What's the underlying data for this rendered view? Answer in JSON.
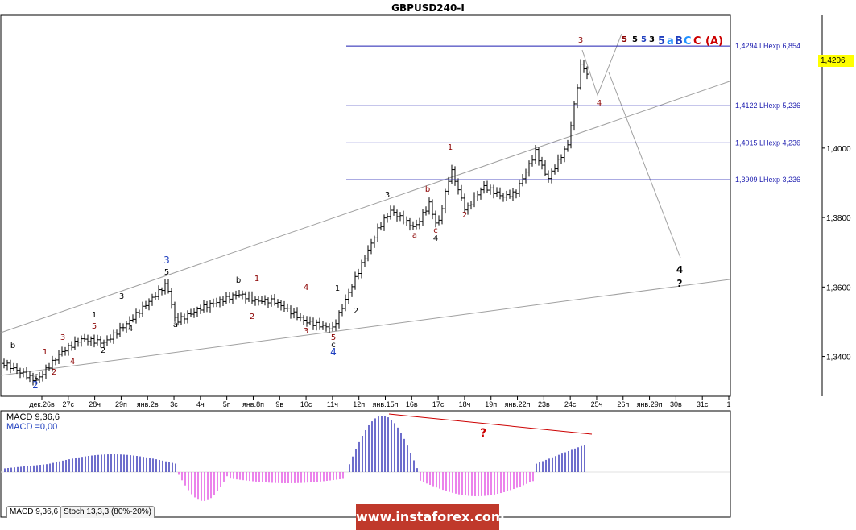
{
  "chart_data": {
    "type": "candlestick",
    "title": "GBPUSD240-I",
    "current_price": "1,4206",
    "y_ticks": [
      "1,4000",
      "1,3800",
      "1,3600",
      "1,3400"
    ],
    "ylim": [
      1.329,
      1.438
    ],
    "x_ticks": [
      "дек.26в",
      "27с",
      "28ч",
      "29п",
      "янв.2в",
      "3с",
      "4ч",
      "5п",
      "янв.8п",
      "9в",
      "10с",
      "11ч",
      "12п",
      "янв.15п",
      "16в",
      "17с",
      "18ч",
      "19п",
      "янв.22п",
      "23в",
      "24с",
      "25ч",
      "26п",
      "янв.29п",
      "30в",
      "31с",
      "1"
    ],
    "fib_levels": [
      {
        "price": 1.4294,
        "label": "1,4294 LHexp 6,854"
      },
      {
        "price": 1.4122,
        "label": "1,4122 LHexp 5,236"
      },
      {
        "price": 1.4015,
        "label": "1,4015 LHexp 4,236"
      },
      {
        "price": 1.3909,
        "label": "1,3909 LHexp 3,236"
      }
    ],
    "wave_labels": [
      {
        "text": "b",
        "color": "#000000"
      },
      {
        "text": "c",
        "color": "#000000"
      },
      {
        "text": "2",
        "color": "#1f3fbf"
      },
      {
        "text": "1",
        "color": "#8b0000"
      },
      {
        "text": "2",
        "color": "#8b0000"
      },
      {
        "text": "3",
        "color": "#8b0000"
      },
      {
        "text": "4",
        "color": "#8b0000"
      },
      {
        "text": "1",
        "color": "#000000"
      },
      {
        "text": "2",
        "color": "#000000"
      },
      {
        "text": "5",
        "color": "#8b0000"
      },
      {
        "text": "3",
        "color": "#000000"
      },
      {
        "text": "4",
        "color": "#000000"
      },
      {
        "text": "3",
        "color": "#1f3fbf"
      },
      {
        "text": "5",
        "color": "#000000"
      },
      {
        "text": "a",
        "color": "#000000"
      },
      {
        "text": "b",
        "color": "#000000"
      },
      {
        "text": "1",
        "color": "#8b0000"
      },
      {
        "text": "2",
        "color": "#8b0000"
      },
      {
        "text": "4",
        "color": "#8b0000"
      },
      {
        "text": "3",
        "color": "#8b0000"
      },
      {
        "text": "5",
        "color": "#8b0000"
      },
      {
        "text": "c",
        "color": "#000000"
      },
      {
        "text": "4",
        "color": "#1f3fbf"
      },
      {
        "text": "1",
        "color": "#000000"
      },
      {
        "text": "2",
        "color": "#000000"
      },
      {
        "text": "3",
        "color": "#000000"
      },
      {
        "text": "a",
        "color": "#8b0000"
      },
      {
        "text": "b",
        "color": "#8b0000"
      },
      {
        "text": "c",
        "color": "#8b0000"
      },
      {
        "text": "4",
        "color": "#000000"
      },
      {
        "text": "1",
        "color": "#8b0000"
      },
      {
        "text": "2",
        "color": "#8b0000"
      },
      {
        "text": "3",
        "color": "#8b0000"
      },
      {
        "text": "4",
        "color": "#8b0000"
      },
      {
        "text": "4",
        "color": "#000000"
      },
      {
        "text": "?",
        "color": "#000000"
      }
    ],
    "mini_waves": [
      {
        "text": "5",
        "color": "#8b0000"
      },
      {
        "text": "5",
        "color": "#000000"
      },
      {
        "text": "5",
        "color": "#1f3fbf"
      },
      {
        "text": "3",
        "color": "#000000"
      },
      {
        "text": "5",
        "color": "#1f3fbf"
      },
      {
        "text": "a",
        "color": "#1e90ff"
      },
      {
        "text": "B",
        "color": "#1f3fbf"
      },
      {
        "text": "C",
        "color": "#1e90ff"
      },
      {
        "text": "C",
        "color": "#cc0000"
      },
      {
        "text": "(A)",
        "color": "#cc0000"
      }
    ],
    "indicator": {
      "name": "MACD 9,36,6",
      "value_text": "MACD =0,00",
      "question": "?",
      "tabs": [
        "MACD 9,36,6",
        "Stoch 13,3,3 (80%-20%)"
      ]
    },
    "watermark": "www.instaforex.com"
  }
}
